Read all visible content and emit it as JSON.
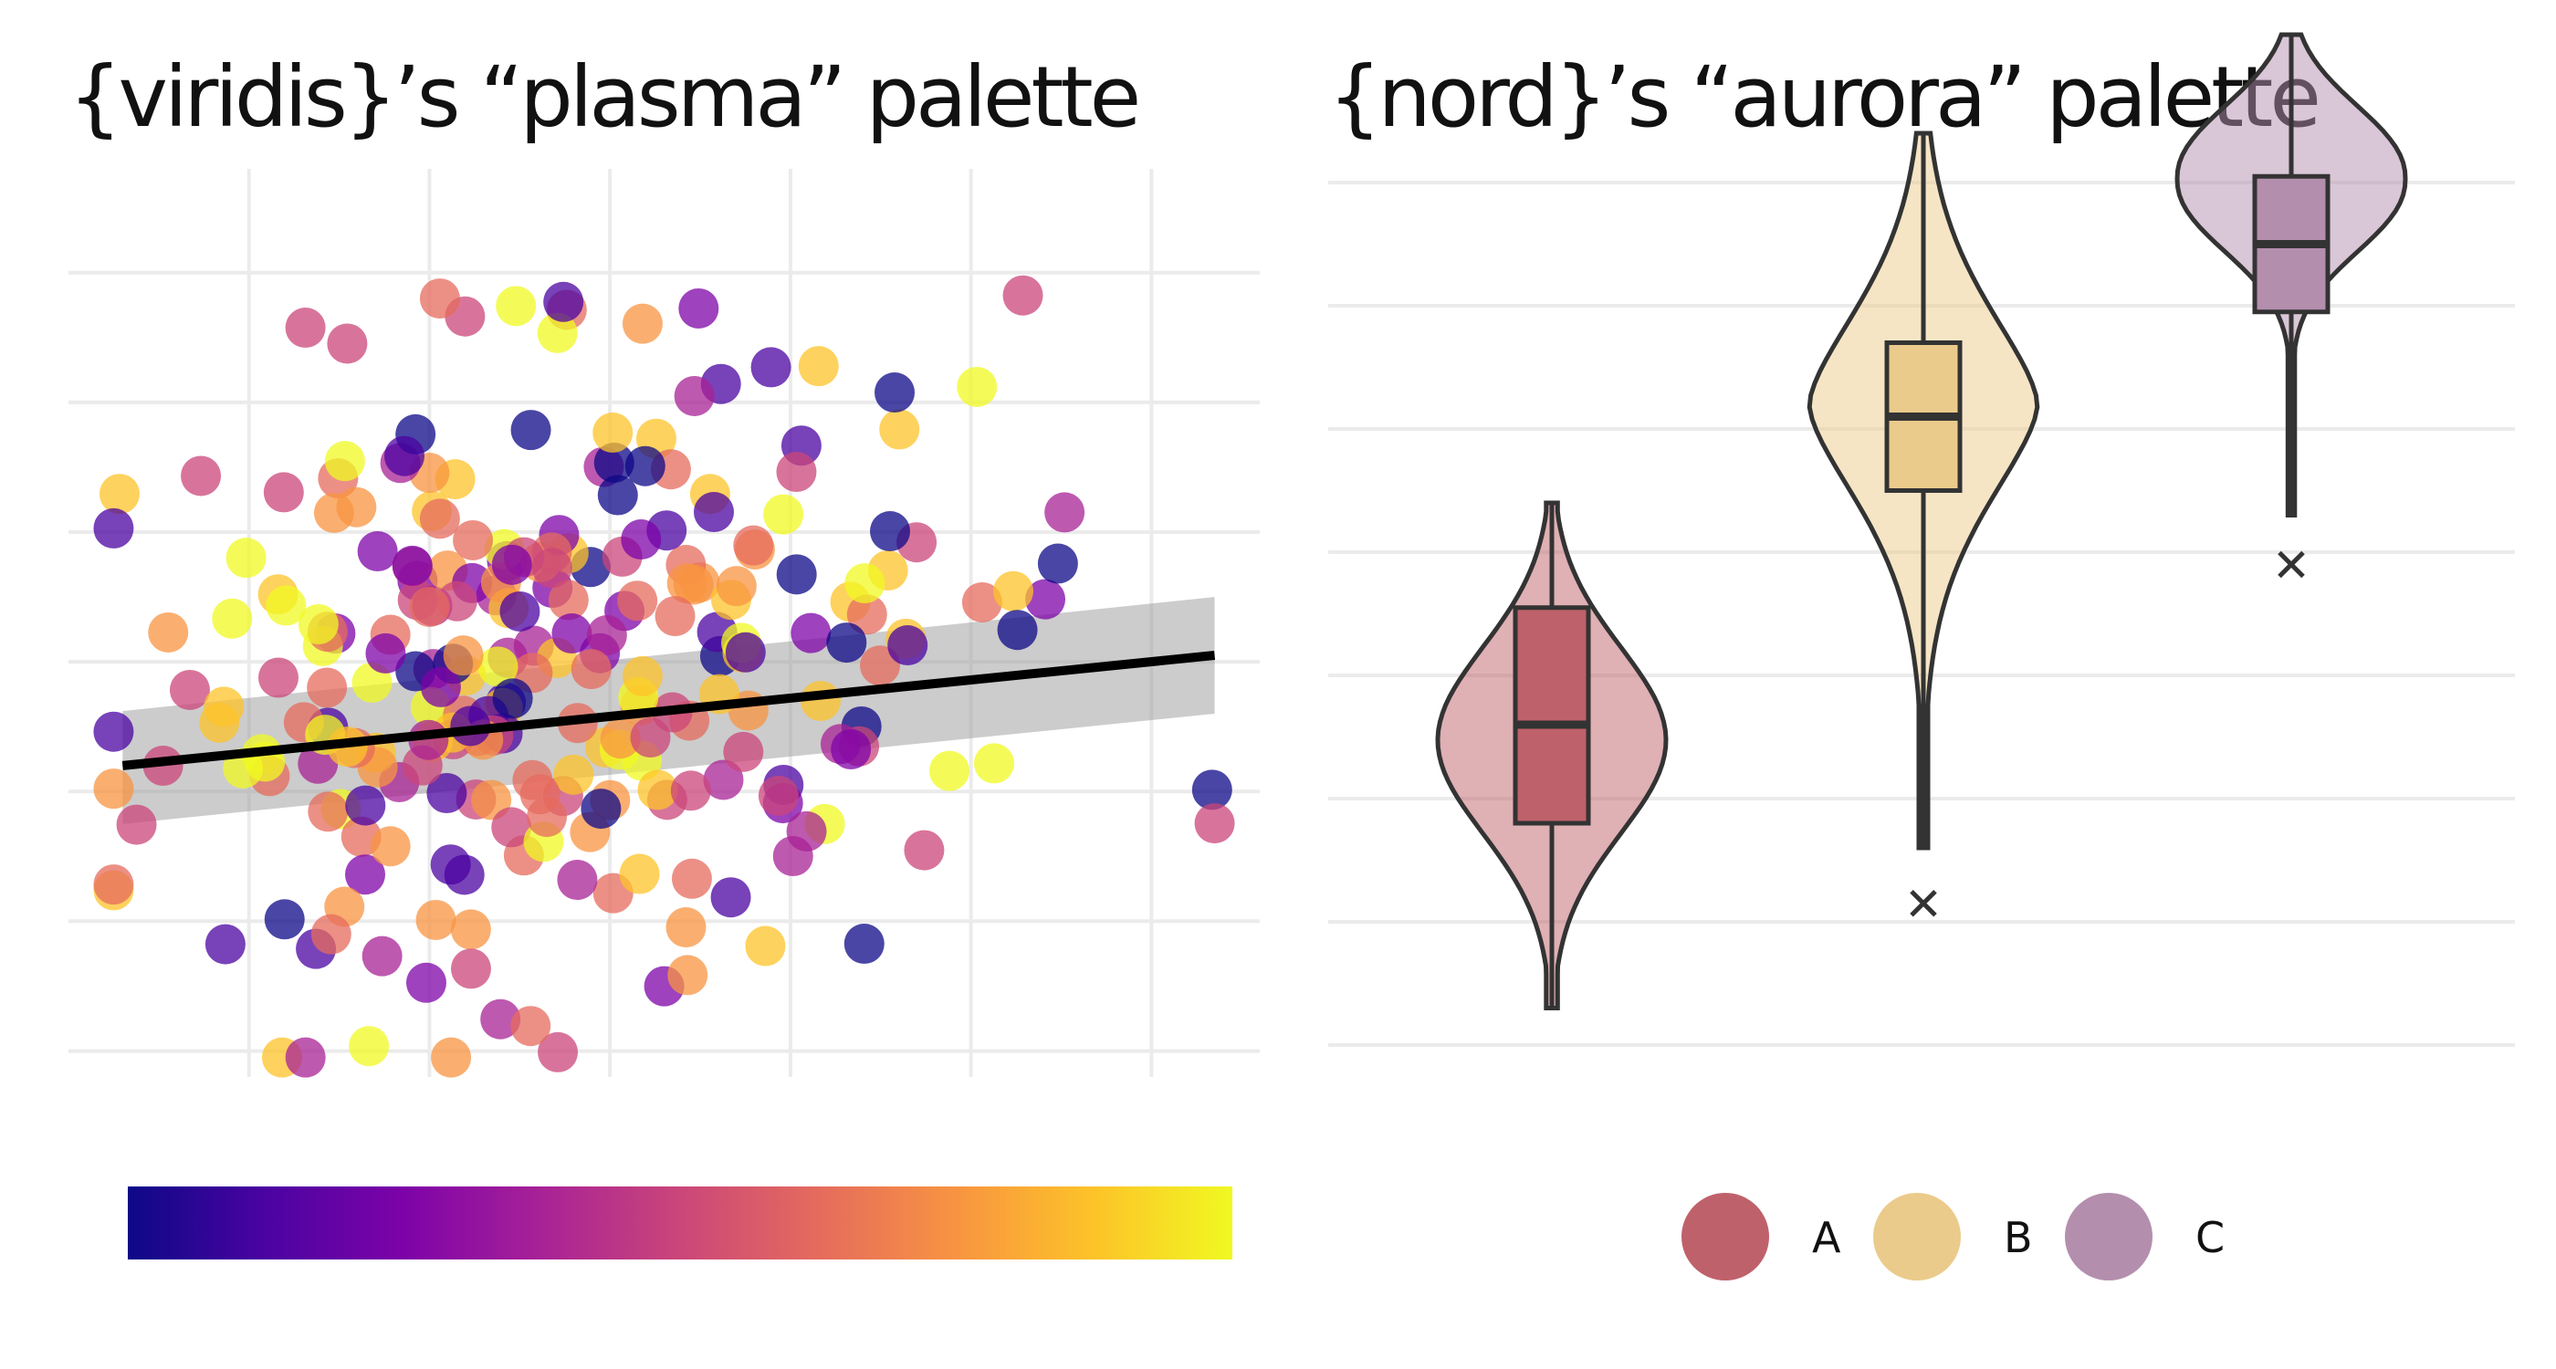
{
  "chart_data": [
    {
      "type": "scatter",
      "title": "{viridis}’s “plasma” palette",
      "xlabel": "",
      "ylabel": "",
      "xlim": [
        -1.0,
        5.6
      ],
      "ylim": [
        -2.2,
        4.8
      ],
      "grid": true,
      "trend": {
        "x1": -0.7,
        "y1": 0.2,
        "x2": 5.35,
        "y2": 1.05,
        "lower1": -0.25,
        "upper1": 0.62,
        "lower2": 0.6,
        "upper2": 1.5
      },
      "palette": [
        "#0D0887",
        "#4B03A1",
        "#7D03A8",
        "#A82296",
        "#CB4679",
        "#E56B5D",
        "#F89441",
        "#FDC328",
        "#F0F921"
      ],
      "colorbar": {
        "position": "bottom",
        "low_color": "#0D0887",
        "high_color": "#F0F921"
      }
    },
    {
      "type": "violin",
      "title": "{nord}’s “aurora” palette",
      "xlabel": "",
      "ylabel": "",
      "ylim": [
        -3.2,
        3.8
      ],
      "grid": true,
      "legend_position": "bottom",
      "groups": [
        {
          "name": "A",
          "color": "#BF616A",
          "min": -2.9,
          "q1": -1.4,
          "median": -0.6,
          "q3": 0.35,
          "max": 1.2,
          "outliers": []
        },
        {
          "name": "B",
          "color": "#EBCB8B",
          "min": -1.6,
          "q1": 1.3,
          "median": 1.9,
          "q3": 2.5,
          "max": 4.2,
          "outliers": [
            -2.05
          ]
        },
        {
          "name": "C",
          "color": "#B48EAD",
          "min": 1.1,
          "q1": 2.75,
          "median": 3.3,
          "q3": 3.85,
          "max": 5.0,
          "outliers": [
            0.7
          ]
        }
      ]
    }
  ]
}
